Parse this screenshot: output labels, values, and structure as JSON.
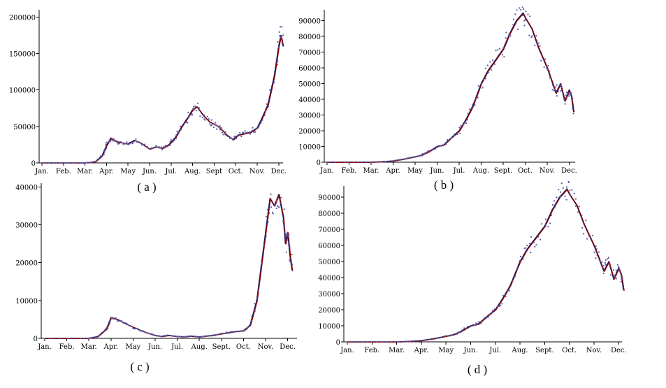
{
  "chart_data": [
    {
      "type": "line",
      "caption": "( a )",
      "xlabel": "",
      "ylabel": "",
      "x_tick_labels": [
        "Jan.",
        "Feb.",
        "Mar.",
        "Apr.",
        "May",
        "Jun.",
        "Jul.",
        "Aug.",
        "Sept",
        "Oct.",
        "Nov.",
        "Dec."
      ],
      "y_ticks": [
        0,
        50000,
        100000,
        150000,
        200000
      ],
      "ylim": [
        0,
        210000
      ],
      "grid": false,
      "series": [
        {
          "x": [
            0,
            0.5,
            1,
            1.5,
            2,
            2.2,
            2.5,
            2.8,
            3,
            3.2,
            3.5,
            3.8,
            4,
            4.3,
            4.6,
            5,
            5.3,
            5.6,
            5.9,
            6.2,
            6.5,
            6.8,
            7,
            7.2,
            7.5,
            7.8,
            8,
            8.2,
            8.4,
            8.6,
            8.9,
            9.1,
            9.4,
            9.7,
            10,
            10.2,
            10.5,
            10.8,
            11,
            11.1,
            11.2
          ],
          "y": [
            0,
            0,
            0,
            0,
            0,
            500,
            2000,
            10000,
            24000,
            34000,
            29000,
            27000,
            26000,
            31000,
            27000,
            19000,
            22000,
            20000,
            25000,
            35000,
            50000,
            63000,
            73000,
            77000,
            65000,
            56000,
            53000,
            50000,
            44000,
            38000,
            32000,
            38000,
            40000,
            42000,
            48000,
            60000,
            80000,
            120000,
            160000,
            175000,
            160000
          ]
        }
      ]
    },
    {
      "type": "line",
      "caption": "( b )",
      "xlabel": "",
      "ylabel": "",
      "x_tick_labels": [
        "Jan.",
        "Feb.",
        "Mar.",
        "Apr.",
        "May",
        "Jun.",
        "Jul.",
        "Aug.",
        "Sept.",
        "Oct.",
        "Nov.",
        "Dec."
      ],
      "y_ticks": [
        0,
        10000,
        20000,
        30000,
        40000,
        50000,
        60000,
        70000,
        80000,
        90000
      ],
      "ylim": [
        0,
        97000
      ],
      "grid": false,
      "series": [
        {
          "x": [
            0,
            1,
            2,
            2.5,
            3,
            3.5,
            4,
            4.3,
            4.6,
            5,
            5.3,
            5.6,
            6,
            6.3,
            6.6,
            7,
            7.3,
            7.6,
            8,
            8.3,
            8.6,
            8.9,
            9,
            9.3,
            9.6,
            10,
            10.2,
            10.4,
            10.6,
            10.8,
            11,
            11.1,
            11.2
          ],
          "y": [
            0,
            0,
            0,
            300,
            800,
            2000,
            3500,
            4500,
            6500,
            10000,
            11000,
            15000,
            20000,
            27000,
            35000,
            50000,
            58000,
            64000,
            72000,
            82000,
            90000,
            95000,
            92000,
            85000,
            73000,
            60000,
            52000,
            44000,
            50000,
            39000,
            46000,
            42000,
            32000
          ]
        }
      ]
    },
    {
      "type": "line",
      "caption": "( c )",
      "xlabel": "",
      "ylabel": "",
      "x_tick_labels": [
        "Jan.",
        "Feb.",
        "Mar.",
        "Apr.",
        "May",
        "Jun.",
        "Jul.",
        "Aug.",
        "Sept.",
        "Oct.",
        "Nov.",
        "Dec."
      ],
      "y_ticks": [
        0,
        10000,
        20000,
        30000,
        40000
      ],
      "ylim": [
        0,
        41000
      ],
      "grid": false,
      "series": [
        {
          "x": [
            0,
            1,
            2,
            2.4,
            2.8,
            3,
            3.3,
            3.6,
            4,
            4.3,
            4.6,
            5,
            5.3,
            5.6,
            6,
            6.3,
            6.6,
            7,
            7.3,
            7.6,
            8,
            8.3,
            8.6,
            9,
            9.3,
            9.6,
            10,
            10.2,
            10.4,
            10.6,
            10.8,
            10.9,
            11,
            11.1,
            11.2
          ],
          "y": [
            0,
            0,
            0,
            500,
            2500,
            5500,
            5000,
            4000,
            3000,
            2200,
            1500,
            800,
            500,
            800,
            500,
            400,
            600,
            400,
            600,
            800,
            1200,
            1500,
            1800,
            2000,
            3500,
            10000,
            28000,
            37000,
            35000,
            38000,
            32000,
            25000,
            28000,
            22000,
            18000
          ]
        }
      ]
    },
    {
      "type": "line",
      "caption": "( d )",
      "xlabel": "",
      "ylabel": "",
      "x_tick_labels": [
        "Jan.",
        "Feb.",
        "Mar.",
        "Apr.",
        "May",
        "Jun.",
        "Jul.",
        "Aug.",
        "Sept.",
        "Oct.",
        "Nov.",
        "Dec."
      ],
      "y_ticks": [
        0,
        10000,
        20000,
        30000,
        40000,
        50000,
        60000,
        70000,
        80000,
        90000
      ],
      "ylim": [
        0,
        97000
      ],
      "grid": false,
      "series": [
        {
          "x": [
            0,
            1,
            2,
            2.5,
            3,
            3.5,
            4,
            4.3,
            4.6,
            5,
            5.3,
            5.6,
            6,
            6.3,
            6.6,
            7,
            7.3,
            7.6,
            8,
            8.3,
            8.6,
            8.9,
            9,
            9.3,
            9.6,
            10,
            10.2,
            10.4,
            10.6,
            10.8,
            11,
            11.1,
            11.2
          ],
          "y": [
            0,
            0,
            0,
            300,
            800,
            2000,
            3500,
            4500,
            6500,
            10000,
            11000,
            15000,
            20000,
            27000,
            35000,
            50000,
            58000,
            64000,
            72000,
            82000,
            90000,
            95000,
            92000,
            85000,
            73000,
            60000,
            52000,
            44000,
            50000,
            39000,
            46000,
            42000,
            32000
          ]
        }
      ]
    }
  ],
  "colors": {
    "model_curve": "#8b0000",
    "fit_curve": "#1a1a66",
    "observed_points": "#5a5aa6"
  }
}
